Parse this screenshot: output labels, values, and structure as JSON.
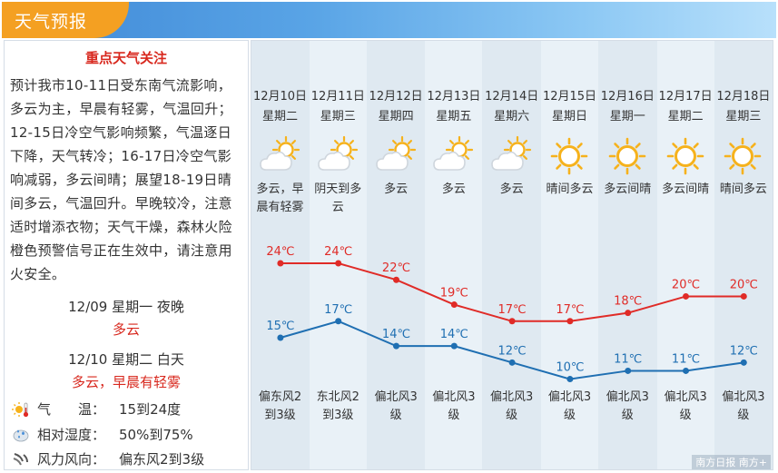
{
  "header": {
    "title": "天气预报"
  },
  "focus": {
    "title": "重点天气关注",
    "text": "预计我市10-11日受东南气流影响，多云为主，早晨有轻雾，气温回升；12-15日冷空气影响频繁，气温逐日下降，天气转冷；16-17日冷空气影响减弱，多云间晴；展望18-19日晴间多云，气温回升。早晚较冷，注意适时增添衣物；天气干燥，森林火险橙色预警信号正在生效中，请注意用火安全。"
  },
  "periods": [
    {
      "date": "12/09 星期一 夜晚",
      "weather": "多云"
    },
    {
      "date": "12/10 星期二 白天",
      "weather": "多云，早晨有轻雾"
    }
  ],
  "details": {
    "temp_label": "气　　温：",
    "temp_value": "15到24度",
    "humidity_label": "相对湿度：",
    "humidity_value": "50%到75%",
    "wind_label": "风力风向：",
    "wind_value": "偏东风2到3级"
  },
  "forecast": [
    {
      "date": "12月10日",
      "week": "星期二",
      "icon": "cloudy-sun-icon",
      "desc": "多云，早晨有轻雾",
      "high": 24,
      "low": 15,
      "high_label": "24℃",
      "low_label": "15℃",
      "wind": "偏东风2到3级"
    },
    {
      "date": "12月11日",
      "week": "星期三",
      "icon": "cloudy-sun-icon",
      "desc": "阴天到多云",
      "high": 24,
      "low": 17,
      "high_label": "24℃",
      "low_label": "17℃",
      "wind": "东北风2到3级"
    },
    {
      "date": "12月12日",
      "week": "星期四",
      "icon": "cloudy-sun-icon",
      "desc": "多云",
      "high": 22,
      "low": 14,
      "high_label": "22℃",
      "low_label": "14℃",
      "wind": "偏北风3级"
    },
    {
      "date": "12月13日",
      "week": "星期五",
      "icon": "cloudy-sun-icon",
      "desc": "多云",
      "high": 19,
      "low": 14,
      "high_label": "19℃",
      "low_label": "14℃",
      "wind": "偏北风3级"
    },
    {
      "date": "12月14日",
      "week": "星期六",
      "icon": "cloudy-sun-icon",
      "desc": "多云",
      "high": 17,
      "low": 12,
      "high_label": "17℃",
      "low_label": "12℃",
      "wind": "偏北风3级"
    },
    {
      "date": "12月15日",
      "week": "星期日",
      "icon": "sun-icon",
      "desc": "晴间多云",
      "high": 17,
      "low": 10,
      "high_label": "17℃",
      "low_label": "10℃",
      "wind": "偏北风3级"
    },
    {
      "date": "12月16日",
      "week": "星期一",
      "icon": "sun-icon",
      "desc": "多云间晴",
      "high": 18,
      "low": 11,
      "high_label": "18℃",
      "low_label": "11℃",
      "wind": "偏北风3级"
    },
    {
      "date": "12月17日",
      "week": "星期二",
      "icon": "sun-icon",
      "desc": "多云间晴",
      "high": 20,
      "low": 11,
      "high_label": "20℃",
      "low_label": "11℃",
      "wind": "偏北风3级"
    },
    {
      "date": "12月18日",
      "week": "星期三",
      "icon": "sun-icon",
      "desc": "晴间多云",
      "high": 20,
      "low": 12,
      "high_label": "20℃",
      "low_label": "12℃",
      "wind": "偏北风3级"
    }
  ],
  "colors": {
    "high": "#e02b27",
    "low": "#1f6fb2",
    "accent": "#f4a022",
    "alert": "#d8281e"
  },
  "watermark": "南方日报 南方+"
}
